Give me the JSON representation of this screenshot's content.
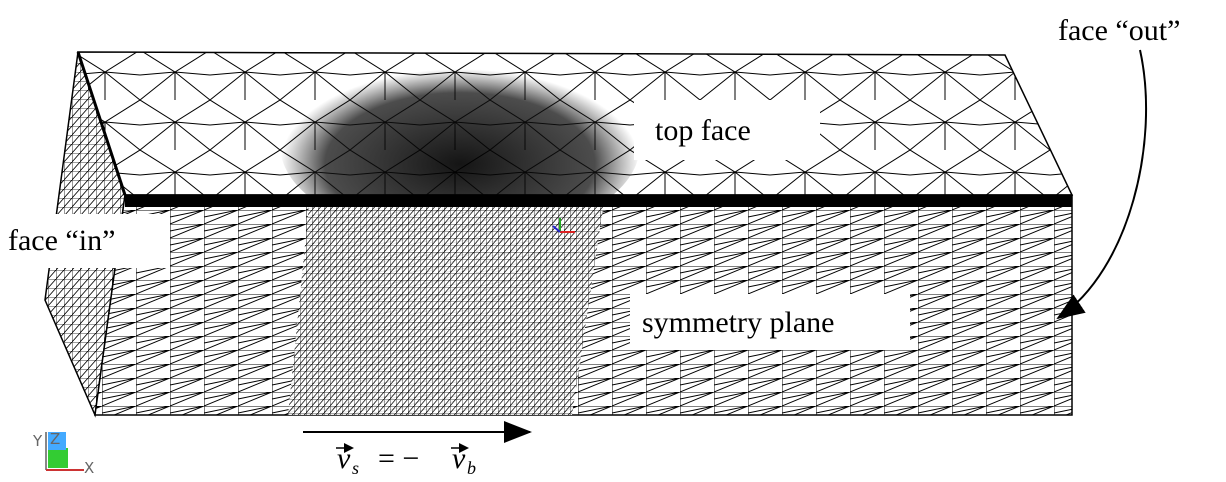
{
  "labels": {
    "face_out": "face “out”",
    "top_face": "top face",
    "face_in": "face “in”",
    "symmetry_plane": "symmetry plane"
  },
  "axes": {
    "y": "Y",
    "z": "Z",
    "x": "X"
  },
  "equation": {
    "left": "v",
    "left_sub": "s",
    "sign": "= −",
    "right": "v",
    "right_sub": "b"
  }
}
